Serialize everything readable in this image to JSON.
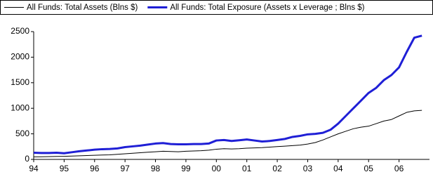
{
  "chart_data": {
    "type": "line",
    "x": [
      1994,
      1994.25,
      1994.5,
      1994.75,
      1995,
      1995.25,
      1995.5,
      1995.75,
      1996,
      1996.25,
      1996.5,
      1996.75,
      1997,
      1997.25,
      1997.5,
      1997.75,
      1998,
      1998.25,
      1998.5,
      1998.75,
      1999,
      1999.25,
      1999.5,
      1999.75,
      2000,
      2000.25,
      2000.5,
      2000.75,
      2001,
      2001.25,
      2001.5,
      2001.75,
      2002,
      2002.25,
      2002.5,
      2002.75,
      2003,
      2003.25,
      2003.5,
      2003.75,
      2004,
      2004.25,
      2004.5,
      2004.75,
      2005,
      2005.25,
      2005.5,
      2005.75,
      2006,
      2006.25,
      2006.5,
      2006.75
    ],
    "series": [
      {
        "name": "All Funds: Total Assets (Blns $)",
        "color": "#000000",
        "width": 1,
        "values": [
          50,
          52,
          55,
          58,
          60,
          65,
          70,
          75,
          80,
          85,
          90,
          100,
          110,
          120,
          130,
          140,
          150,
          160,
          155,
          150,
          160,
          165,
          170,
          180,
          200,
          210,
          205,
          210,
          220,
          225,
          230,
          240,
          250,
          260,
          270,
          280,
          300,
          330,
          380,
          440,
          500,
          550,
          600,
          630,
          650,
          700,
          750,
          780,
          850,
          920,
          950,
          960
        ]
      },
      {
        "name": "All Funds: Total Exposure (Assets x Leverage ; Blns $)",
        "color": "#1f1fd6",
        "width": 3,
        "values": [
          130,
          125,
          125,
          130,
          120,
          140,
          160,
          175,
          190,
          200,
          205,
          215,
          240,
          255,
          270,
          290,
          310,
          320,
          300,
          295,
          295,
          300,
          300,
          310,
          370,
          380,
          360,
          375,
          390,
          370,
          350,
          360,
          380,
          400,
          440,
          460,
          490,
          500,
          520,
          580,
          700,
          850,
          1000,
          1150,
          1300,
          1400,
          1550,
          1650,
          1800,
          2100,
          2380,
          2420
        ]
      }
    ],
    "xlim": [
      1994,
      2007
    ],
    "xticks": [
      {
        "value": 1994,
        "label": "94"
      },
      {
        "value": 1995,
        "label": "95"
      },
      {
        "value": 1996,
        "label": "96"
      },
      {
        "value": 1997,
        "label": "97"
      },
      {
        "value": 1998,
        "label": "98"
      },
      {
        "value": 1999,
        "label": "99"
      },
      {
        "value": 2000,
        "label": "00"
      },
      {
        "value": 2001,
        "label": "01"
      },
      {
        "value": 2002,
        "label": "02"
      },
      {
        "value": 2003,
        "label": "03"
      },
      {
        "value": 2004,
        "label": "04"
      },
      {
        "value": 2005,
        "label": "05"
      },
      {
        "value": 2006,
        "label": "06"
      }
    ],
    "ylim": [
      0,
      2500
    ],
    "yticks": [
      0,
      500,
      1000,
      1500,
      2000,
      2500
    ],
    "grid": false
  }
}
